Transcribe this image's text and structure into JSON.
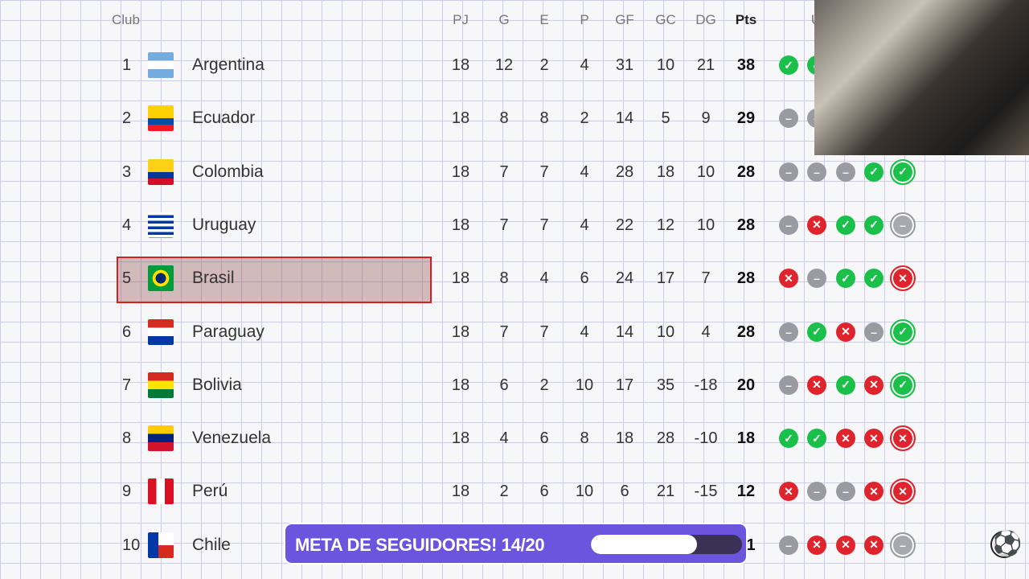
{
  "headers": {
    "club": "Club",
    "pj": "PJ",
    "g": "G",
    "e": "E",
    "p": "P",
    "gf": "GF",
    "gc": "GC",
    "dg": "DG",
    "pts": "Pts",
    "form": "U"
  },
  "colors": {
    "win": "#1bc04a",
    "draw": "#9a9aa2",
    "loss": "#e0242e",
    "highlight": "#d42020",
    "goal_bar": "#6c55de"
  },
  "rows": [
    {
      "pos": "1",
      "club": "Argentina",
      "pj": "18",
      "g": "12",
      "e": "2",
      "p": "4",
      "gf": "31",
      "gc": "10",
      "dg": "21",
      "pts": "38",
      "form": [
        "W",
        "W"
      ]
    },
    {
      "pos": "2",
      "club": "Ecuador",
      "pj": "18",
      "g": "8",
      "e": "8",
      "p": "2",
      "gf": "14",
      "gc": "5",
      "dg": "9",
      "pts": "29",
      "form": [
        "D",
        "D"
      ]
    },
    {
      "pos": "3",
      "club": "Colombia",
      "pj": "18",
      "g": "7",
      "e": "7",
      "p": "4",
      "gf": "28",
      "gc": "18",
      "dg": "10",
      "pts": "28",
      "form": [
        "D",
        "D",
        "D",
        "W",
        "W"
      ]
    },
    {
      "pos": "4",
      "club": "Uruguay",
      "pj": "18",
      "g": "7",
      "e": "7",
      "p": "4",
      "gf": "22",
      "gc": "12",
      "dg": "10",
      "pts": "28",
      "form": [
        "D",
        "L",
        "W",
        "W",
        "D"
      ]
    },
    {
      "pos": "5",
      "club": "Brasil",
      "pj": "18",
      "g": "8",
      "e": "4",
      "p": "6",
      "gf": "24",
      "gc": "17",
      "dg": "7",
      "pts": "28",
      "form": [
        "L",
        "D",
        "W",
        "W",
        "L"
      ],
      "highlighted": true
    },
    {
      "pos": "6",
      "club": "Paraguay",
      "pj": "18",
      "g": "7",
      "e": "7",
      "p": "4",
      "gf": "14",
      "gc": "10",
      "dg": "4",
      "pts": "28",
      "form": [
        "D",
        "W",
        "L",
        "D",
        "W"
      ]
    },
    {
      "pos": "7",
      "club": "Bolivia",
      "pj": "18",
      "g": "6",
      "e": "2",
      "p": "10",
      "gf": "17",
      "gc": "35",
      "dg": "-18",
      "pts": "20",
      "form": [
        "D",
        "L",
        "W",
        "L",
        "W"
      ]
    },
    {
      "pos": "8",
      "club": "Venezuela",
      "pj": "18",
      "g": "4",
      "e": "6",
      "p": "8",
      "gf": "18",
      "gc": "28",
      "dg": "-10",
      "pts": "18",
      "form": [
        "W",
        "W",
        "L",
        "L",
        "L"
      ]
    },
    {
      "pos": "9",
      "club": "Perú",
      "pj": "18",
      "g": "2",
      "e": "6",
      "p": "10",
      "gf": "6",
      "gc": "21",
      "dg": "-15",
      "pts": "12",
      "form": [
        "L",
        "D",
        "D",
        "L",
        "L"
      ]
    },
    {
      "pos": "10",
      "club": "Chile",
      "pts_partial": "1",
      "form": [
        "D",
        "L",
        "L",
        "L",
        "D"
      ]
    }
  ],
  "goal": {
    "label": "META DE SEGUIDORES! 14/20",
    "current": 14,
    "target": 20
  },
  "icons": {
    "ball": "soccer-ball-icon",
    "win": "check-icon",
    "loss": "x-icon",
    "draw": "minus-icon"
  }
}
